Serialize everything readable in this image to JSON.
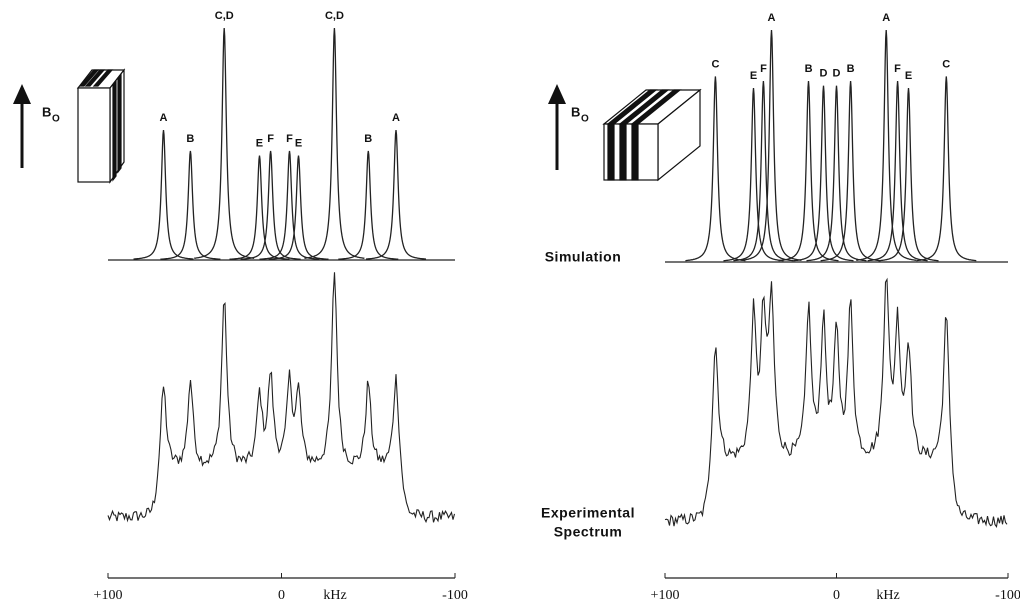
{
  "left": {
    "peaks": [
      {
        "label": "A",
        "x": 68,
        "height": 56
      },
      {
        "label": "B",
        "x": 52.5,
        "height": 47
      },
      {
        "label": "C,D",
        "x": 33,
        "height": 100
      },
      {
        "label": "E",
        "x": 12.7,
        "height": 45
      },
      {
        "label": "F",
        "x": 6.3,
        "height": 47
      },
      {
        "label": "F",
        "x": -4.6,
        "height": 47
      },
      {
        "label": "E",
        "x": -9.8,
        "height": 45
      },
      {
        "label": "C,D",
        "x": -30.5,
        "height": 100
      },
      {
        "label": "B",
        "x": -50,
        "height": 47
      },
      {
        "label": "A",
        "x": -66,
        "height": 56
      }
    ]
  },
  "right": {
    "peaks": [
      {
        "label": "C",
        "x": 70.6,
        "height": 80
      },
      {
        "label": "E",
        "x": 48.4,
        "height": 75
      },
      {
        "label": "F",
        "x": 42.6,
        "height": 78
      },
      {
        "label": "A",
        "x": 37.9,
        "height": 100
      },
      {
        "label": "B",
        "x": 16.3,
        "height": 78
      },
      {
        "label": "D",
        "x": 7.6,
        "height": 76
      },
      {
        "label": "D",
        "x": 0,
        "height": 76
      },
      {
        "label": "B",
        "x": -8.2,
        "height": 78
      },
      {
        "label": "A",
        "x": -29,
        "height": 100
      },
      {
        "label": "F",
        "x": -35.6,
        "height": 78
      },
      {
        "label": "E",
        "x": -42,
        "height": 75
      },
      {
        "label": "C",
        "x": -64,
        "height": 80
      }
    ]
  },
  "field_label": {
    "symbol": "B",
    "subscript": "O"
  },
  "simulation_label": "Simulation",
  "experimental_label": [
    "Experimental",
    "Spectrum"
  ],
  "axis": {
    "xlim": [
      100,
      -100
    ],
    "ticks": [
      {
        "value": 100,
        "label": "+100"
      },
      0,
      -100
    ],
    "unit": "kHz"
  }
}
